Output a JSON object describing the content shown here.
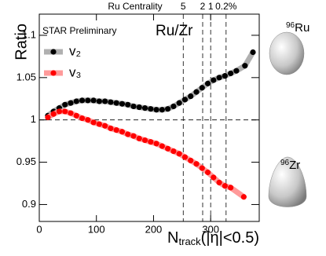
{
  "chart_data": {
    "type": "scatter",
    "y_label": "Ratio",
    "x_label": [
      "N",
      "track",
      "(|η|<0.5)"
    ],
    "top_axis_label": "Ru Centrality",
    "centrality_ticks": [
      {
        "value": 252,
        "label": "5"
      },
      {
        "value": 286,
        "label": "2"
      },
      {
        "value": 300,
        "label": "1"
      },
      {
        "value": 327,
        "label": "0.2%"
      }
    ],
    "annotations": {
      "experiment": "STAR Preliminary",
      "system": "Ru/Zr"
    },
    "nuclei": [
      {
        "mass": "96",
        "name": "Ru"
      },
      {
        "mass": "96",
        "name": "Zr"
      }
    ],
    "legend": "upper left",
    "reference_line": 1,
    "xlim": [
      0,
      385
    ],
    "ylim": [
      0.88,
      1.125
    ],
    "xticks": [
      0,
      100,
      200,
      300
    ],
    "yticks": [
      0.9,
      0.95,
      1,
      1.05,
      1.1
    ],
    "series": [
      {
        "name": "v₂",
        "color": "#000000",
        "band_color": "#b0b0b0",
        "x": [
          15,
          25,
          35,
          45,
          55,
          65,
          75,
          85,
          95,
          105,
          115,
          125,
          135,
          145,
          155,
          165,
          175,
          185,
          195,
          205,
          215,
          225,
          235,
          245,
          255,
          265,
          275,
          285,
          295,
          305,
          315,
          325,
          335,
          345,
          360,
          374
        ],
        "values": [
          1.005,
          1.01,
          1.014,
          1.018,
          1.02,
          1.022,
          1.023,
          1.023,
          1.023,
          1.022,
          1.022,
          1.021,
          1.02,
          1.019,
          1.018,
          1.016,
          1.015,
          1.014,
          1.013,
          1.012,
          1.012,
          1.013,
          1.016,
          1.02,
          1.024,
          1.028,
          1.033,
          1.038,
          1.043,
          1.047,
          1.05,
          1.052,
          1.055,
          1.058,
          1.064,
          1.08
        ]
      },
      {
        "name": "v₃",
        "color": "#ff0000",
        "band_color": "#ff9a9a",
        "x": [
          15,
          25,
          35,
          45,
          55,
          65,
          75,
          85,
          95,
          105,
          115,
          125,
          135,
          145,
          155,
          165,
          175,
          185,
          195,
          205,
          215,
          225,
          235,
          245,
          255,
          265,
          275,
          285,
          295,
          305,
          315,
          325,
          335,
          358
        ],
        "values": [
          1.003,
          1.007,
          1.01,
          1.01,
          1.008,
          1.005,
          1.002,
          1.0,
          0.997,
          0.995,
          0.993,
          0.99,
          0.988,
          0.986,
          0.983,
          0.981,
          0.978,
          0.976,
          0.974,
          0.972,
          0.969,
          0.966,
          0.963,
          0.96,
          0.956,
          0.952,
          0.948,
          0.943,
          0.938,
          0.932,
          0.926,
          0.922,
          0.92,
          0.909
        ]
      }
    ]
  }
}
